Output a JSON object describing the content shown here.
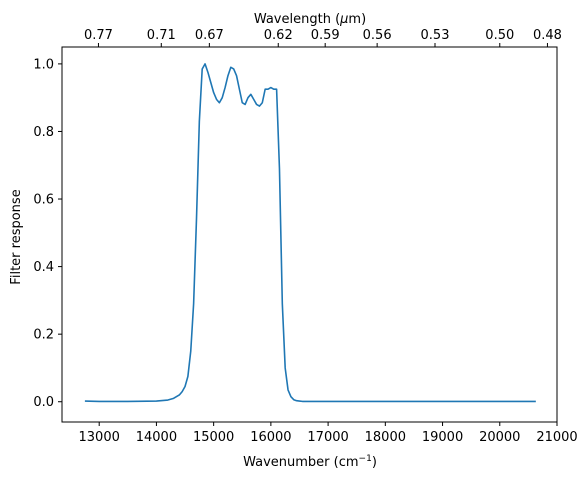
{
  "chart_data": {
    "type": "line",
    "title": "",
    "xlabel": "Wavenumber (cm",
    "xlabel_sup": "−1",
    "xlabel_tail": ")",
    "x2label": "Wavelength (",
    "x2label_mu": "μ",
    "x2label_tail": "m)",
    "ylabel": "Filter response",
    "xlim": [
      12350,
      21000
    ],
    "ylim": [
      -0.06,
      1.05
    ],
    "x_ticks": [
      13000,
      14000,
      15000,
      16000,
      17000,
      18000,
      19000,
      20000,
      21000
    ],
    "y_ticks": [
      0.0,
      0.2,
      0.4,
      0.6,
      0.8,
      1.0
    ],
    "x2_ticks": [
      "0.77",
      "0.71",
      "0.67",
      "0.62",
      "0.59",
      "0.56",
      "0.53",
      "0.50",
      "0.48"
    ],
    "x2_tick_wavenumbers": [
      12987,
      14085,
      14925,
      16129,
      16949,
      17857,
      18868,
      20000,
      20833
    ],
    "grid": false,
    "series": [
      {
        "color": "#1f77b4",
        "x": [
          12750,
          13000,
          13500,
          14000,
          14200,
          14300,
          14400,
          14450,
          14500,
          14550,
          14600,
          14650,
          14700,
          14750,
          14800,
          14850,
          14900,
          14950,
          15000,
          15050,
          15100,
          15150,
          15200,
          15250,
          15300,
          15350,
          15400,
          15450,
          15500,
          15550,
          15600,
          15650,
          15700,
          15750,
          15800,
          15850,
          15900,
          15950,
          16000,
          16050,
          16100,
          16150,
          16200,
          16250,
          16300,
          16350,
          16400,
          16450,
          16500,
          16550,
          16600,
          16650,
          16700,
          16750,
          16800,
          16850,
          16900,
          16950,
          17000,
          17100,
          17200,
          17500,
          18000,
          19000,
          20000,
          20630
        ],
        "y": [
          0.002,
          0.001,
          0.001,
          0.002,
          0.005,
          0.01,
          0.02,
          0.03,
          0.045,
          0.075,
          0.15,
          0.29,
          0.54,
          0.83,
          0.985,
          1.0,
          0.975,
          0.945,
          0.915,
          0.895,
          0.885,
          0.9,
          0.93,
          0.965,
          0.99,
          0.985,
          0.965,
          0.925,
          0.885,
          0.88,
          0.9,
          0.91,
          0.895,
          0.88,
          0.875,
          0.885,
          0.925,
          0.925,
          0.93,
          0.925,
          0.925,
          0.69,
          0.29,
          0.1,
          0.035,
          0.015,
          0.006,
          0.003,
          0.002,
          0.001,
          0.001,
          0.001,
          0.001,
          0.001,
          0.001,
          0.001,
          0.001,
          0.001,
          0.001,
          0.001,
          0.001,
          0.001,
          0.001,
          0.001,
          0.001,
          0.001
        ]
      }
    ]
  }
}
